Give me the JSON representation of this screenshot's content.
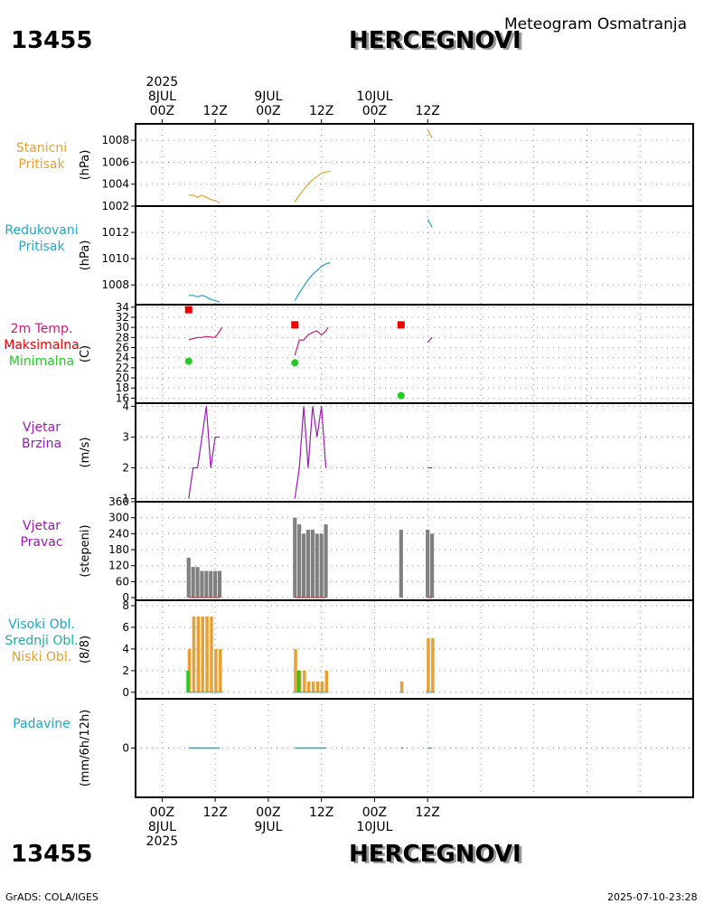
{
  "header": {
    "station_id": "13455",
    "station_name": "HERCEGNOVI",
    "subtitle": "Meteogram Osmatranja"
  },
  "footer": {
    "credit": "GrADS: COLA/IGES",
    "timestamp": "2025-07-10-23:28"
  },
  "colors": {
    "orange": "#e8a032",
    "blue": "#1fa5c8",
    "magenta": "#cc1a78",
    "purple": "#9b1ab2",
    "red": "#ee0000",
    "green": "#22cc22",
    "gray": "#808080",
    "teal": "#20b0a0"
  },
  "chart_data": {
    "type": "meteogram",
    "time_axis": {
      "range_hours": [
        -6,
        120
      ],
      "top_labels": [
        {
          "t": 0,
          "lines": [
            "2025",
            "8JUL",
            "00Z"
          ]
        },
        {
          "t": 12,
          "lines": [
            "12Z"
          ]
        },
        {
          "t": 24,
          "lines": [
            "9JUL",
            "00Z"
          ]
        },
        {
          "t": 36,
          "lines": [
            "12Z"
          ]
        },
        {
          "t": 48,
          "lines": [
            "10JUL",
            "00Z"
          ]
        },
        {
          "t": 60,
          "lines": [
            "12Z"
          ]
        }
      ],
      "bottom_labels": [
        {
          "t": 0,
          "lines": [
            "00Z",
            "8JUL",
            "2025"
          ]
        },
        {
          "t": 12,
          "lines": [
            "12Z"
          ]
        },
        {
          "t": 24,
          "lines": [
            "00Z",
            "9JUL"
          ]
        },
        {
          "t": 36,
          "lines": [
            "12Z"
          ]
        },
        {
          "t": 48,
          "lines": [
            "00Z",
            "10JUL"
          ]
        },
        {
          "t": 60,
          "lines": [
            "12Z"
          ]
        }
      ]
    },
    "panels": [
      {
        "id": "station-pressure",
        "labels": [
          {
            "text": "Stanicni",
            "color": "#e8a032"
          },
          {
            "text": "Pritisak",
            "color": "#e8a032"
          }
        ],
        "unit": "(hPa)",
        "ylim": [
          1002,
          1009.5
        ],
        "yticks": [
          1002,
          1004,
          1006,
          1008
        ],
        "series": [
          {
            "kind": "line",
            "color": "#e8a032",
            "points": [
              [
                6,
                1003.0
              ],
              [
                7,
                1003.0
              ],
              [
                8,
                1002.8
              ],
              [
                9,
                1003.0
              ],
              [
                10,
                1002.8
              ],
              [
                11,
                1002.6
              ],
              [
                12,
                1002.5
              ],
              [
                13,
                1002.3
              ]
            ]
          },
          {
            "kind": "line",
            "color": "#e8a032",
            "points": [
              [
                30,
                1002.4
              ],
              [
                31,
                1003.0
              ],
              [
                32,
                1003.5
              ],
              [
                33,
                1004.0
              ],
              [
                34,
                1004.4
              ],
              [
                35,
                1004.7
              ],
              [
                36,
                1005.0
              ],
              [
                37,
                1005.1
              ],
              [
                38,
                1005.2
              ]
            ]
          },
          {
            "kind": "line",
            "color": "#e8a032",
            "points": [
              [
                60,
                1009.0
              ],
              [
                61,
                1008.2
              ]
            ]
          }
        ]
      },
      {
        "id": "reduced-pressure",
        "labels": [
          {
            "text": "Redukovani",
            "color": "#1fa5c8"
          },
          {
            "text": "Pritisak",
            "color": "#1fa5c8"
          }
        ],
        "unit": "(hPa)",
        "ylim": [
          1006.5,
          1014
        ],
        "yticks": [
          1008,
          1010,
          1012
        ],
        "series": [
          {
            "kind": "line",
            "color": "#1fa5c8",
            "points": [
              [
                6,
                1007.2
              ],
              [
                7,
                1007.2
              ],
              [
                8,
                1007.1
              ],
              [
                9,
                1007.2
              ],
              [
                10,
                1007.1
              ],
              [
                11,
                1006.9
              ],
              [
                12,
                1006.8
              ],
              [
                13,
                1006.7
              ]
            ]
          },
          {
            "kind": "line",
            "color": "#1fa5c8",
            "points": [
              [
                30,
                1006.8
              ],
              [
                31,
                1007.4
              ],
              [
                32,
                1007.9
              ],
              [
                33,
                1008.4
              ],
              [
                34,
                1008.8
              ],
              [
                35,
                1009.1
              ],
              [
                36,
                1009.4
              ],
              [
                37,
                1009.6
              ],
              [
                38,
                1009.7
              ]
            ]
          },
          {
            "kind": "line",
            "color": "#1fa5c8",
            "points": [
              [
                60,
                1013.0
              ],
              [
                61,
                1012.4
              ]
            ]
          }
        ]
      },
      {
        "id": "temperature",
        "labels": [
          {
            "text": "2m Temp.",
            "color": "#cc1a78"
          },
          {
            "text": "Maksimalna",
            "color": "#ee0000"
          },
          {
            "text": "Minimalna",
            "color": "#22cc22"
          }
        ],
        "unit": "(C)",
        "ylim": [
          15,
          34.5
        ],
        "yticks": [
          16,
          18,
          20,
          22,
          24,
          26,
          28,
          30,
          32,
          34
        ],
        "series": [
          {
            "kind": "line",
            "color": "#cc1a78",
            "points": [
              [
                6,
                27.5
              ],
              [
                7,
                27.8
              ],
              [
                8,
                28.0
              ],
              [
                9,
                28.0
              ],
              [
                10,
                28.2
              ],
              [
                11,
                28.1
              ],
              [
                12,
                28.0
              ],
              [
                13,
                29.2
              ],
              [
                13.5,
                30.0
              ]
            ]
          },
          {
            "kind": "line",
            "color": "#cc1a78",
            "points": [
              [
                30,
                24.5
              ],
              [
                31,
                27.5
              ],
              [
                32,
                27.5
              ],
              [
                33,
                28.5
              ],
              [
                34,
                29.0
              ],
              [
                35,
                29.3
              ],
              [
                36,
                28.5
              ],
              [
                37,
                29.3
              ],
              [
                37.5,
                30.0
              ]
            ]
          },
          {
            "kind": "line",
            "color": "#cc1a78",
            "points": [
              [
                60,
                27.0
              ],
              [
                61,
                28.0
              ]
            ]
          },
          {
            "kind": "square",
            "color": "#ee0000",
            "points": [
              [
                6,
                33.5
              ],
              [
                30,
                30.5
              ],
              [
                54,
                30.5
              ]
            ]
          },
          {
            "kind": "circle",
            "color": "#22cc22",
            "points": [
              [
                6,
                23.3
              ],
              [
                30,
                23.0
              ],
              [
                54,
                16.5
              ]
            ]
          }
        ]
      },
      {
        "id": "wind-speed",
        "labels": [
          {
            "text": "Vjetar",
            "color": "#9b1ab2"
          },
          {
            "text": "Brzina",
            "color": "#9b1ab2"
          }
        ],
        "unit": "(m/s)",
        "ylim": [
          0.9,
          4.1
        ],
        "yticks": [
          1,
          2,
          3,
          4
        ],
        "series": [
          {
            "kind": "line",
            "color": "#9b1ab2",
            "points": [
              [
                6,
                1
              ],
              [
                7,
                2
              ],
              [
                8,
                2
              ],
              [
                9,
                3
              ],
              [
                10,
                4
              ],
              [
                11,
                2
              ],
              [
                12,
                3
              ],
              [
                13,
                3
              ]
            ]
          },
          {
            "kind": "line",
            "color": "#9b1ab2",
            "points": [
              [
                30,
                1
              ],
              [
                31,
                2
              ],
              [
                32,
                4
              ],
              [
                33,
                2
              ],
              [
                34,
                4
              ],
              [
                35,
                3
              ],
              [
                36,
                4
              ],
              [
                37,
                2
              ]
            ]
          },
          {
            "kind": "line",
            "color": "#9b1ab2",
            "points": [
              [
                60,
                2
              ],
              [
                61,
                2
              ]
            ]
          }
        ]
      },
      {
        "id": "wind-direction",
        "labels": [
          {
            "text": "Vjetar",
            "color": "#9b1ab2"
          },
          {
            "text": "Pravac",
            "color": "#9b1ab2"
          }
        ],
        "unit": "(stepeni)",
        "ylim": [
          -10,
          360
        ],
        "yticks": [
          0,
          60,
          120,
          180,
          240,
          300,
          360
        ],
        "bars": {
          "color": "#808080",
          "times": [
            6,
            7,
            8,
            9,
            10,
            11,
            12,
            13,
            30,
            31,
            32,
            33,
            34,
            35,
            36,
            37,
            54,
            60,
            61
          ],
          "values": [
            150,
            115,
            115,
            100,
            100,
            100,
            100,
            100,
            300,
            275,
            240,
            255,
            255,
            240,
            240,
            275,
            255,
            255,
            240
          ]
        },
        "calm_lines": [
          [
            6,
            13
          ],
          [
            30,
            37
          ],
          [
            60,
            61
          ]
        ]
      },
      {
        "id": "clouds",
        "labels": [
          {
            "text": "Visoki Obl.",
            "color": "#1fa5c8"
          },
          {
            "text": "Srednji Obl.",
            "color": "#20b0a0"
          },
          {
            "text": "Niski Obl.",
            "color": "#e8a032"
          }
        ],
        "unit": "(8/8)",
        "ylim": [
          -0.6,
          8.5
        ],
        "yticks": [
          0,
          2,
          4,
          6,
          8
        ],
        "low": {
          "color": "#e8a032",
          "times": [
            6,
            7,
            8,
            9,
            10,
            11,
            12,
            13,
            30,
            31,
            32,
            33,
            34,
            35,
            36,
            37,
            54,
            60,
            61
          ],
          "values": [
            4,
            7,
            7,
            7,
            7,
            7,
            4,
            4,
            4,
            2,
            2,
            1,
            1,
            1,
            1,
            2,
            1,
            5,
            5
          ]
        },
        "mid": {
          "color": "#22cc22",
          "times": [
            6,
            31
          ],
          "values": [
            2,
            2
          ]
        }
      },
      {
        "id": "precipitation",
        "labels": [
          {
            "text": "Padavine",
            "color": "#1fa5c8"
          }
        ],
        "unit": "(mm/6h/12h)",
        "ylim": [
          -5,
          5
        ],
        "yticks": [
          0
        ],
        "zero_segments": [
          [
            6,
            13
          ],
          [
            30,
            37
          ],
          [
            54,
            54.5
          ],
          [
            60,
            61
          ]
        ]
      }
    ]
  }
}
